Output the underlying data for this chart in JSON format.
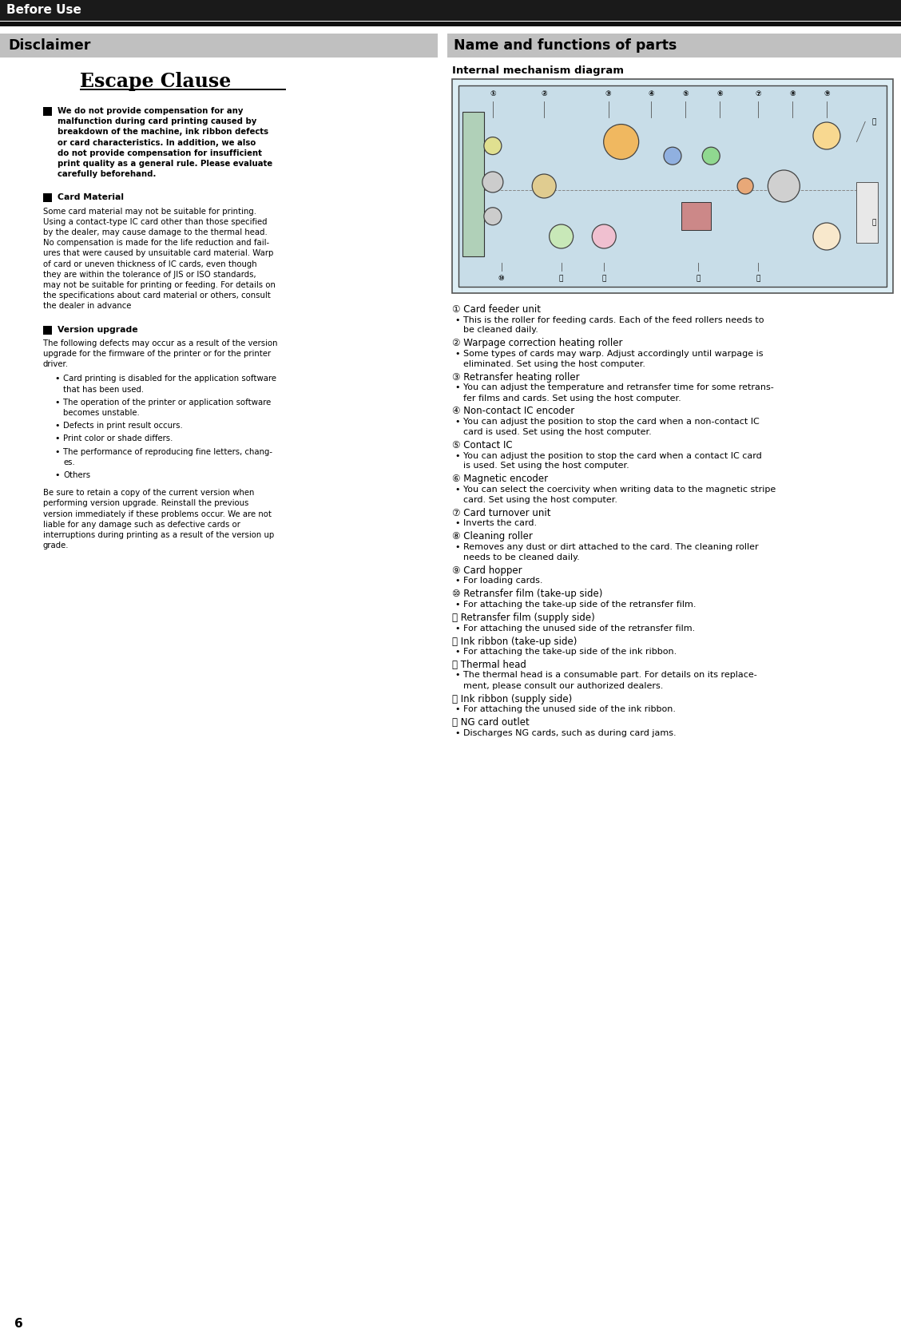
{
  "page_bg": "#ffffff",
  "header_bg": "#1a1a1a",
  "header_text": "Before Use",
  "header_text_color": "#ffffff",
  "section_bg": "#c0c0c0",
  "section_left_title": "Disclaimer",
  "section_right_title": "Name and functions of parts",
  "escape_clause_title": "Escape Clause",
  "bold_block1_lines": [
    "We do not provide compensation for any",
    "malfunction during card printing caused by",
    "breakdown of the machine, ink ribbon defects",
    "or card characteristics. In addition, we also",
    "do not provide compensation for insufficient",
    "print quality as a general rule. Please evaluate",
    "carefully beforehand."
  ],
  "card_material_title": "Card Material",
  "card_material_lines": [
    "Some card material may not be suitable for printing.",
    "Using a contact-type IC card other than those specified",
    "by the dealer, may cause damage to the thermal head.",
    "No compensation is made for the life reduction and fail-",
    "ures that were caused by unsuitable card material. Warp",
    "of card or uneven thickness of IC cards, even though",
    "they are within the tolerance of JIS or ISO standards,",
    "may not be suitable for printing or feeding. For details on",
    "the specifications about card material or others, consult",
    "the dealer in advance"
  ],
  "version_upgrade_title": "Version upgrade",
  "version_intro_lines": [
    "The following defects may occur as a result of the version",
    "upgrade for the firmware of the printer or for the printer",
    "driver."
  ],
  "version_bullets_groups": [
    [
      "Card printing is disabled for the application software",
      "that has been used."
    ],
    [
      "The operation of the printer or application software",
      "becomes unstable."
    ],
    [
      "Defects in print result occurs."
    ],
    [
      "Print color or shade differs."
    ],
    [
      "The performance of reproducing fine letters, chang-",
      "es."
    ],
    [
      "Others"
    ]
  ],
  "version_close_lines": [
    "Be sure to retain a copy of the current version when",
    "performing version upgrade. Reinstall the previous",
    "version immediately if these problems occur. We are not",
    "liable for any damage such as defective cards or",
    "interruptions during printing as a result of the version up",
    "grade."
  ],
  "internal_diagram_title": "Internal mechanism diagram",
  "parts": [
    {
      "num": "①",
      "name": "Card feeder unit",
      "desc_lines": [
        "This is the roller for feeding cards. Each of the feed rollers needs to",
        "be cleaned daily."
      ]
    },
    {
      "num": "②",
      "name": "Warpage correction heating roller",
      "desc_lines": [
        "Some types of cards may warp. Adjust accordingly until warpage is",
        "eliminated. Set using the host computer."
      ]
    },
    {
      "num": "③",
      "name": "Retransfer heating roller",
      "desc_lines": [
        "You can adjust the temperature and retransfer time for some retrans-",
        "fer films and cards. Set using the host computer."
      ]
    },
    {
      "num": "④",
      "name": "Non-contact IC encoder",
      "desc_lines": [
        "You can adjust the position to stop the card when a non-contact IC",
        "card is used. Set using the host computer."
      ]
    },
    {
      "num": "⑤",
      "name": "Contact IC",
      "desc_lines": [
        "You can adjust the position to stop the card when a contact IC card",
        "is used. Set using the host computer."
      ]
    },
    {
      "num": "⑥",
      "name": "Magnetic encoder",
      "desc_lines": [
        "You can select the coercivity when writing data to the magnetic stripe",
        "card. Set using the host computer."
      ]
    },
    {
      "num": "⑦",
      "name": "Card turnover unit",
      "desc_lines": [
        "Inverts the card."
      ]
    },
    {
      "num": "⑧",
      "name": "Cleaning roller",
      "desc_lines": [
        "Removes any dust or dirt attached to the card. The cleaning roller",
        "needs to be cleaned daily."
      ]
    },
    {
      "num": "⑨",
      "name": "Card hopper",
      "desc_lines": [
        "For loading cards."
      ]
    },
    {
      "num": "⑩",
      "name": "Retransfer film (take-up side)",
      "desc_lines": [
        "For attaching the take-up side of the retransfer film."
      ]
    },
    {
      "num": "⑪",
      "name": "Retransfer film (supply side)",
      "desc_lines": [
        "For attaching the unused side of the retransfer film."
      ]
    },
    {
      "num": "⑫",
      "name": "Ink ribbon (take-up side)",
      "desc_lines": [
        "For attaching the take-up side of the ink ribbon."
      ]
    },
    {
      "num": "⑬",
      "name": "Thermal head",
      "desc_lines": [
        "The thermal head is a consumable part. For details on its replace-",
        "ment, please consult our authorized dealers."
      ]
    },
    {
      "num": "⑭",
      "name": "Ink ribbon (supply side)",
      "desc_lines": [
        "For attaching the unused side of the ink ribbon."
      ]
    },
    {
      "num": "⑮",
      "name": "NG card outlet",
      "desc_lines": [
        "Discharges NG cards, such as during card jams."
      ]
    }
  ],
  "page_number": "6"
}
